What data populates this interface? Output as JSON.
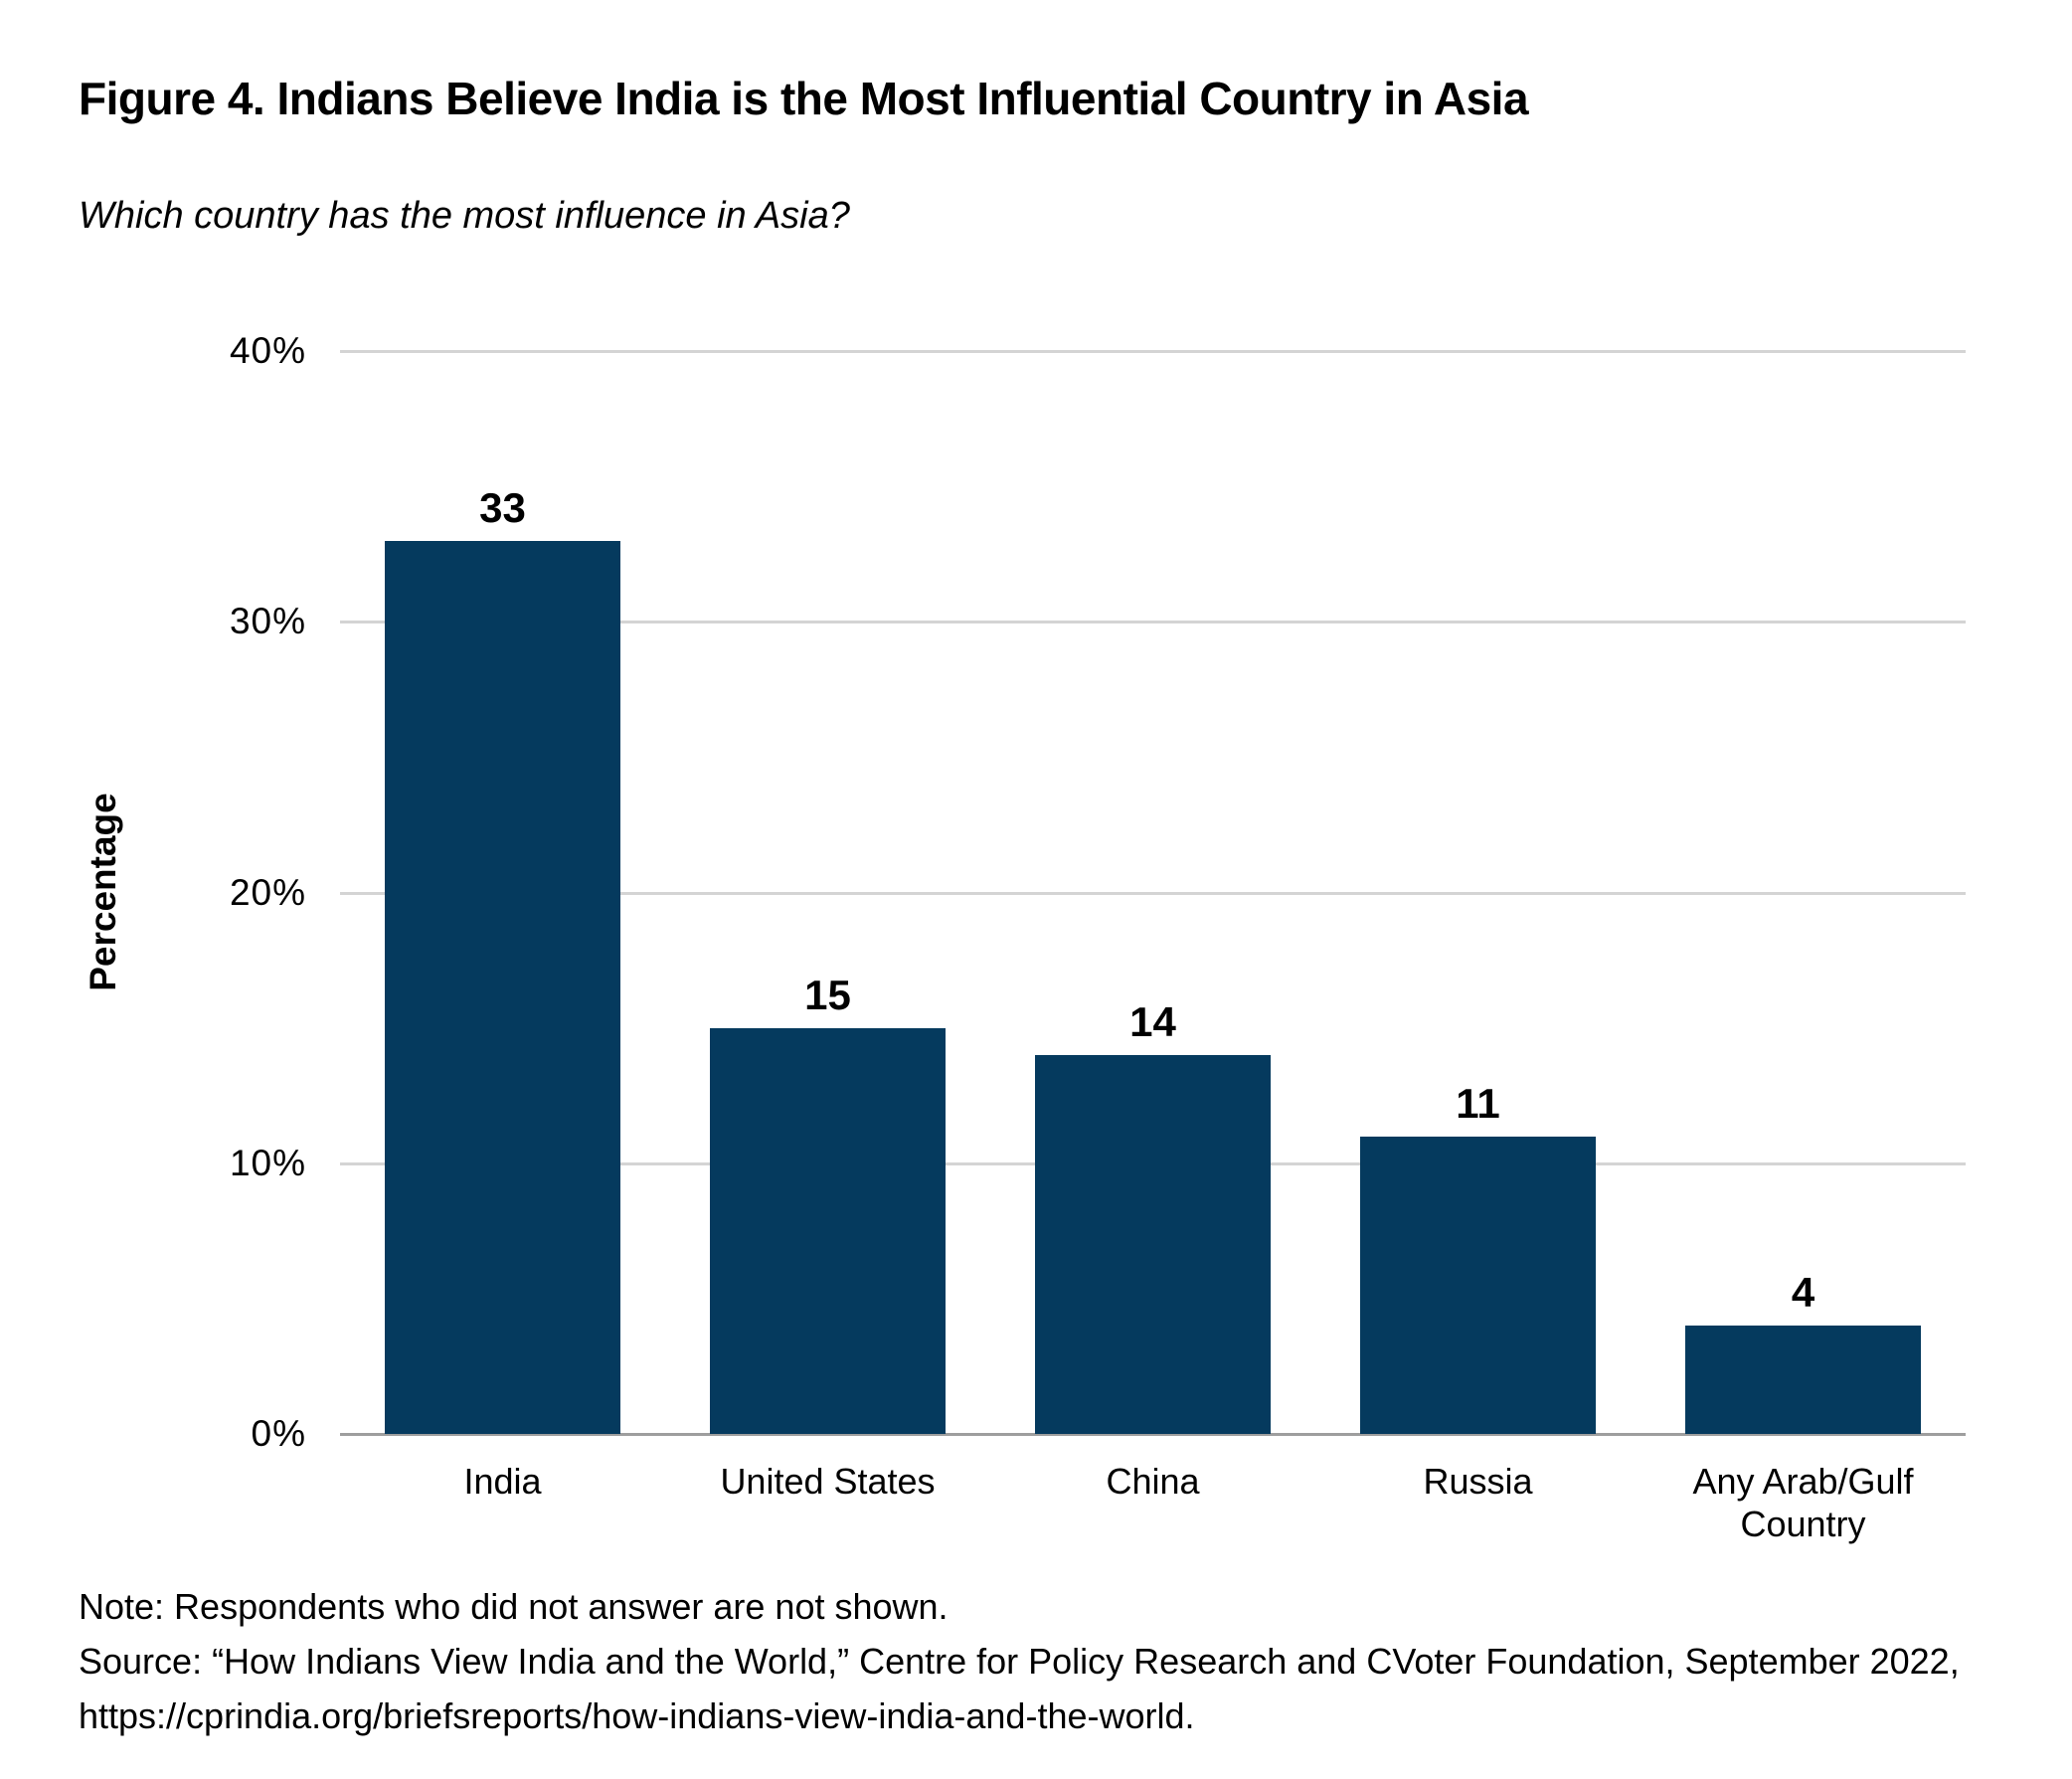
{
  "figure": {
    "title": "Figure 4. Indians Believe India is the Most Influential Country in Asia",
    "subtitle": "Which country has the most influence in Asia?",
    "note": "Note: Respondents who did not answer are not shown.",
    "source_line1": "Source: “How Indians View India and the World,” Centre for Policy Research and CVoter Foundation, September 2022,",
    "source_line2": "https://cprindia.org/briefsreports/how-indians-view-india-and-the-world."
  },
  "chart_data": {
    "type": "bar",
    "title": "Figure 4. Indians Believe India is the Most Influential Country in Asia",
    "subtitle": "Which country has the most influence in Asia?",
    "categories": [
      "India",
      "United States",
      "China",
      "Russia",
      "Any Arab/Gulf Country"
    ],
    "values": [
      33,
      15,
      14,
      11,
      4
    ],
    "bar_labels": [
      "33",
      "15",
      "14",
      "11",
      "4"
    ],
    "xlabel": "",
    "ylabel": "Percentage",
    "ylim": [
      0,
      40
    ],
    "ytick_values": [
      40,
      30,
      20,
      10,
      0
    ],
    "ytick_labels": [
      "40%",
      "30%",
      "20%",
      "10%",
      "0%"
    ],
    "grid": true,
    "legend": "none",
    "colors": {
      "bar": "#053A5E",
      "gridline": "#D4D4D4",
      "baseline": "#9E9E9E",
      "text": "#000000"
    }
  }
}
